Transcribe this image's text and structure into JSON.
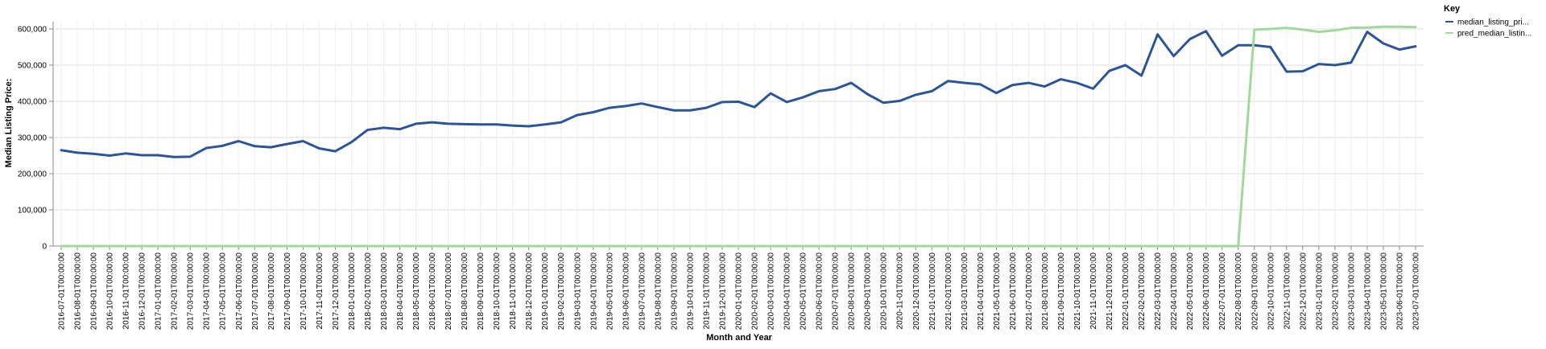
{
  "chart_data": {
    "type": "line",
    "title": "",
    "xlabel": "Month and Year",
    "ylabel": "Median Listing Price:",
    "ylim": [
      0,
      600000
    ],
    "y_ticks": [
      0,
      100000,
      200000,
      300000,
      400000,
      500000,
      600000
    ],
    "y_tick_labels": [
      "0",
      "100,000",
      "200,000",
      "300,000",
      "400,000",
      "500,000",
      "600,000"
    ],
    "grid": true,
    "legend": {
      "title": "Key",
      "placement": "top-right"
    },
    "categories": [
      "2016-07-01T00:00:00",
      "2016-08-01T00:00:00",
      "2016-09-01T00:00:00",
      "2016-10-01T00:00:00",
      "2016-11-01T00:00:00",
      "2016-12-01T00:00:00",
      "2017-01-01T00:00:00",
      "2017-02-01T00:00:00",
      "2017-03-01T00:00:00",
      "2017-04-01T00:00:00",
      "2017-05-01T00:00:00",
      "2017-06-01T00:00:00",
      "2017-07-01T00:00:00",
      "2017-08-01T00:00:00",
      "2017-09-01T00:00:00",
      "2017-10-01T00:00:00",
      "2017-11-01T00:00:00",
      "2017-12-01T00:00:00",
      "2018-01-01T00:00:00",
      "2018-02-01T00:00:00",
      "2018-03-01T00:00:00",
      "2018-04-01T00:00:00",
      "2018-05-01T00:00:00",
      "2018-06-01T00:00:00",
      "2018-07-01T00:00:00",
      "2018-08-01T00:00:00",
      "2018-09-01T00:00:00",
      "2018-10-01T00:00:00",
      "2018-11-01T00:00:00",
      "2018-12-01T00:00:00",
      "2019-01-01T00:00:00",
      "2019-02-01T00:00:00",
      "2019-03-01T00:00:00",
      "2019-04-01T00:00:00",
      "2019-05-01T00:00:00",
      "2019-06-01T00:00:00",
      "2019-07-01T00:00:00",
      "2019-08-01T00:00:00",
      "2019-09-01T00:00:00",
      "2019-10-01T00:00:00",
      "2019-11-01T00:00:00",
      "2019-12-01T00:00:00",
      "2020-01-01T00:00:00",
      "2020-02-01T00:00:00",
      "2020-03-01T00:00:00",
      "2020-04-01T00:00:00",
      "2020-05-01T00:00:00",
      "2020-06-01T00:00:00",
      "2020-07-01T00:00:00",
      "2020-08-01T00:00:00",
      "2020-09-01T00:00:00",
      "2020-10-01T00:00:00",
      "2020-11-01T00:00:00",
      "2020-12-01T00:00:00",
      "2021-01-01T00:00:00",
      "2021-02-01T00:00:00",
      "2021-03-01T00:00:00",
      "2021-04-01T00:00:00",
      "2021-05-01T00:00:00",
      "2021-06-01T00:00:00",
      "2021-07-01T00:00:00",
      "2021-08-01T00:00:00",
      "2021-09-01T00:00:00",
      "2021-10-01T00:00:00",
      "2021-11-01T00:00:00",
      "2021-12-01T00:00:00",
      "2022-01-01T00:00:00",
      "2022-02-01T00:00:00",
      "2022-03-01T00:00:00",
      "2022-04-01T00:00:00",
      "2022-05-01T00:00:00",
      "2022-06-01T00:00:00",
      "2022-07-01T00:00:00",
      "2022-08-01T00:00:00",
      "2022-09-01T00:00:00",
      "2022-10-01T00:00:00",
      "2022-11-01T00:00:00",
      "2022-12-01T00:00:00",
      "2023-01-01T00:00:00",
      "2023-02-01T00:00:00",
      "2023-03-01T00:00:00",
      "2023-04-01T00:00:00",
      "2023-05-01T00:00:00",
      "2023-06-01T00:00:00",
      "2023-07-01T00:00:00"
    ],
    "series": [
      {
        "name": "median_listing_pri...",
        "color": "#2c5597",
        "values": [
          265000,
          258000,
          255000,
          250000,
          256000,
          251000,
          251000,
          246000,
          247000,
          271000,
          277000,
          290000,
          276000,
          273000,
          282000,
          290000,
          270000,
          262000,
          287000,
          321000,
          327000,
          323000,
          338000,
          342000,
          338000,
          337000,
          336000,
          336000,
          333000,
          331000,
          336000,
          342000,
          362000,
          370000,
          382000,
          387000,
          394000,
          384000,
          375000,
          375000,
          382000,
          398000,
          399000,
          384000,
          422000,
          398000,
          411000,
          428000,
          434000,
          451000,
          420000,
          396000,
          401000,
          418000,
          428000,
          456000,
          451000,
          447000,
          423000,
          445000,
          451000,
          441000,
          461000,
          451000,
          435000,
          484000,
          500000,
          471000,
          585000,
          525000,
          572000,
          594000,
          526000,
          555000,
          555000,
          550000,
          482000,
          483000,
          503000,
          500000,
          507000,
          592000,
          560000,
          543000,
          552000
        ]
      },
      {
        "name": "pred_median_listin...",
        "color": "#a1d99b",
        "values": [
          0,
          0,
          0,
          0,
          0,
          0,
          0,
          0,
          0,
          0,
          0,
          0,
          0,
          0,
          0,
          0,
          0,
          0,
          0,
          0,
          0,
          0,
          0,
          0,
          0,
          0,
          0,
          0,
          0,
          0,
          0,
          0,
          0,
          0,
          0,
          0,
          0,
          0,
          0,
          0,
          0,
          0,
          0,
          0,
          0,
          0,
          0,
          0,
          0,
          0,
          0,
          0,
          0,
          0,
          0,
          0,
          0,
          0,
          0,
          0,
          0,
          0,
          0,
          0,
          0,
          0,
          0,
          0,
          0,
          0,
          0,
          0,
          0,
          0,
          598000,
          600000,
          603000,
          598000,
          592000,
          596000,
          603000,
          604000,
          606000,
          606000,
          605000
        ]
      }
    ]
  }
}
